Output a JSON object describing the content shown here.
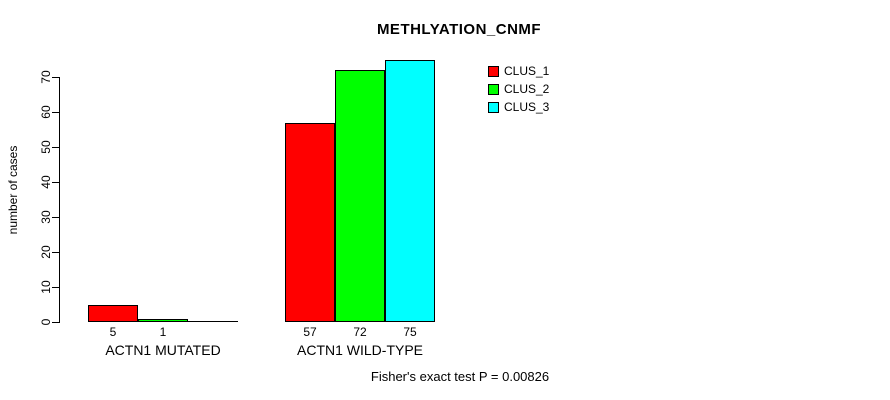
{
  "chart_data": {
    "type": "bar",
    "title": "METHLYATION_CNMF",
    "ylabel": "number of cases",
    "xlabel": "",
    "categories": [
      "ACTN1 MUTATED",
      "ACTN1 WILD-TYPE"
    ],
    "series": [
      {
        "name": "CLUS_1",
        "color": "#FF0000",
        "values": [
          5,
          57
        ]
      },
      {
        "name": "CLUS_2",
        "color": "#00FF00",
        "values": [
          1,
          72
        ]
      },
      {
        "name": "CLUS_3",
        "color": "#00FFFF",
        "values": [
          0,
          75
        ]
      }
    ],
    "bar_value_labels": [
      [
        "5",
        "1",
        ""
      ],
      [
        "57",
        "72",
        "75"
      ]
    ],
    "y_ticks": [
      0,
      10,
      20,
      30,
      40,
      50,
      60,
      70
    ],
    "ylim": [
      0,
      75
    ],
    "grid": false,
    "legend_position": "top-right",
    "bar_border_color": "#000000",
    "axis_color": "#000000",
    "text_color": "#000000",
    "background_color": "#FFFFFF",
    "annotation": "Fisher's exact test P = 0.00826"
  }
}
